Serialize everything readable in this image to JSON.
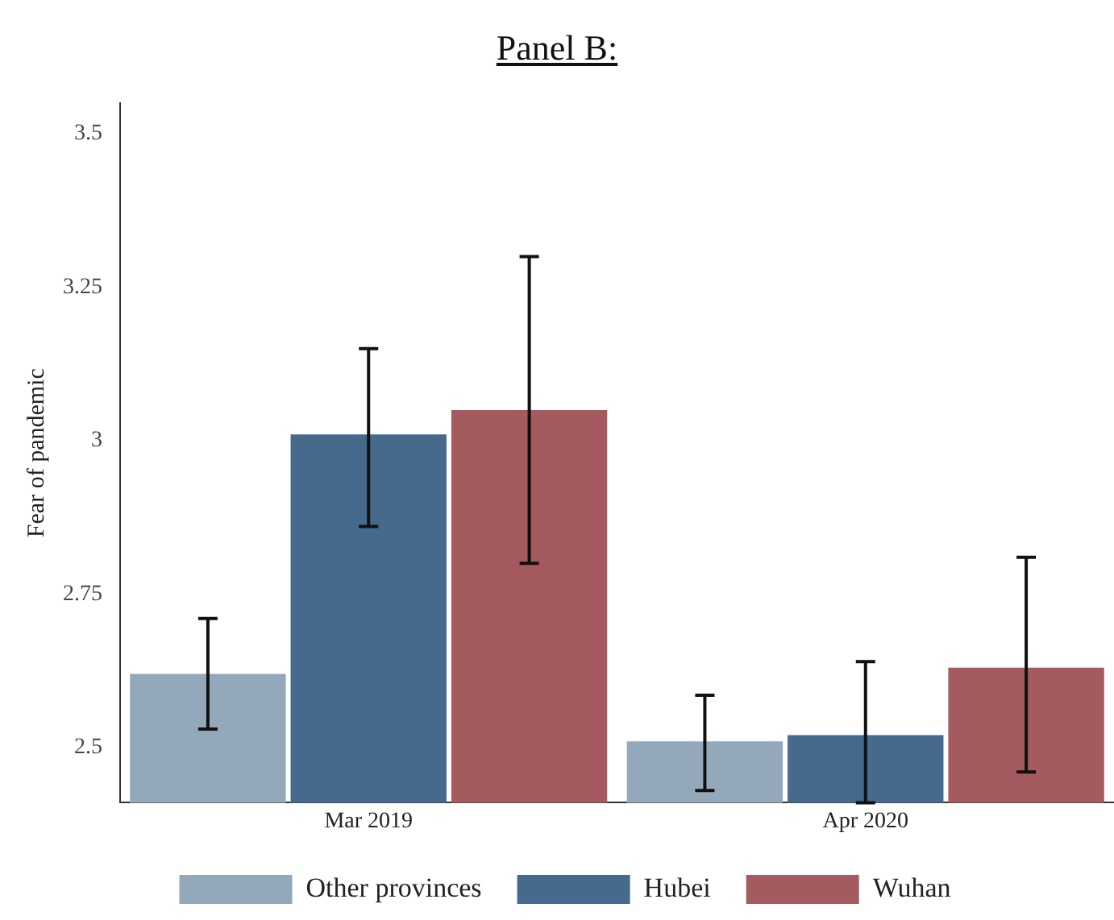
{
  "chart_data": {
    "type": "bar",
    "title": "Panel B:",
    "ylabel": "Fear of pandemic",
    "categories": [
      "Mar 2019",
      "Apr 2020"
    ],
    "series": [
      {
        "name": "Other provinces",
        "color": "#94a8bb",
        "values": [
          2.62,
          2.51
        ],
        "errors": [
          [
            2.53,
            2.71
          ],
          [
            2.43,
            2.585
          ]
        ]
      },
      {
        "name": "Hubei",
        "color": "#456a8c",
        "values": [
          3.01,
          2.52
        ],
        "errors": [
          [
            2.86,
            3.15
          ],
          [
            2.41,
            2.64
          ]
        ]
      },
      {
        "name": "Wuhan",
        "color": "#a55a5f",
        "values": [
          3.05,
          2.63
        ],
        "errors": [
          [
            2.8,
            3.3
          ],
          [
            2.46,
            2.81
          ]
        ]
      }
    ],
    "ylim": [
      2.41,
      3.55
    ],
    "yticks": [
      2.5,
      2.75,
      3,
      3.25,
      3.5
    ],
    "grid": false,
    "legend": "bottom"
  }
}
